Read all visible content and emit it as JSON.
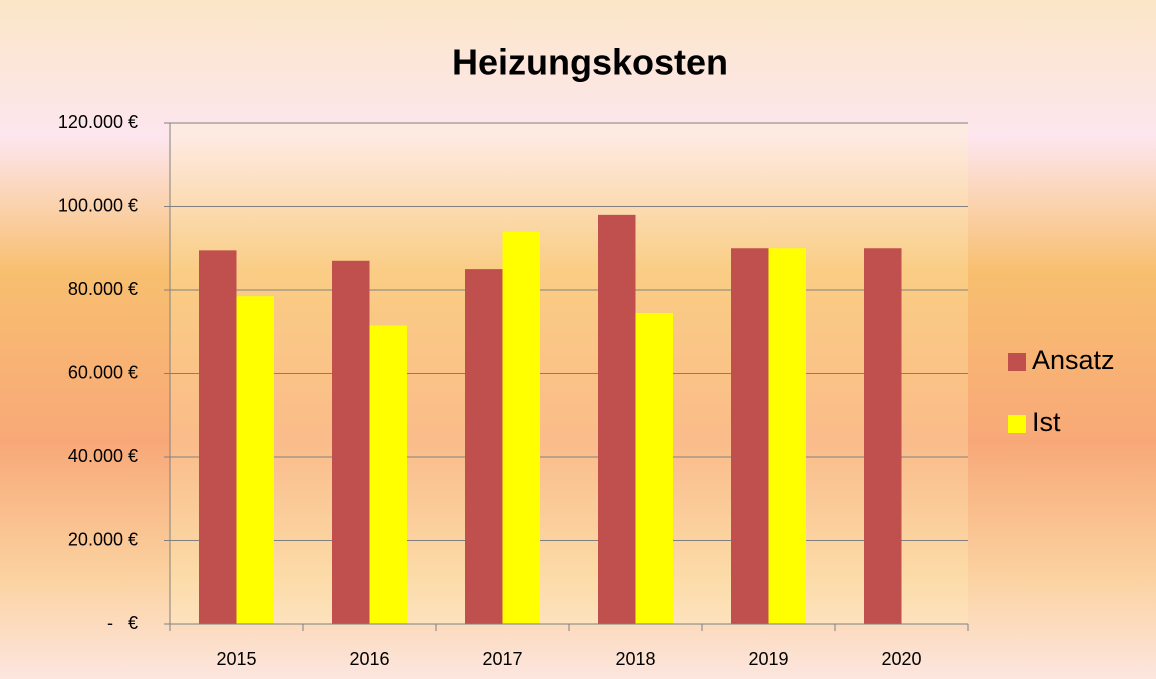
{
  "chart_data": {
    "type": "bar",
    "title": "Heizungskosten",
    "categories": [
      "2015",
      "2016",
      "2017",
      "2018",
      "2019",
      "2020"
    ],
    "series": [
      {
        "name": "Ansatz",
        "color": "#c0504d",
        "values": [
          89500,
          87000,
          85000,
          98000,
          90000,
          90000
        ]
      },
      {
        "name": "Ist",
        "color": "#ffff00",
        "values": [
          78500,
          71500,
          94000,
          74500,
          90000,
          null
        ]
      }
    ],
    "ylim": [
      0,
      120000
    ],
    "yticks": [
      {
        "value": 0,
        "label": "-   €"
      },
      {
        "value": 20000,
        "label": "20.000 €"
      },
      {
        "value": 40000,
        "label": "40.000 €"
      },
      {
        "value": 60000,
        "label": "60.000 €"
      },
      {
        "value": 80000,
        "label": "80.000 €"
      },
      {
        "value": 100000,
        "label": "100.000 €"
      },
      {
        "value": 120000,
        "label": "120.000 €"
      }
    ],
    "grid": true,
    "legend": "right"
  }
}
